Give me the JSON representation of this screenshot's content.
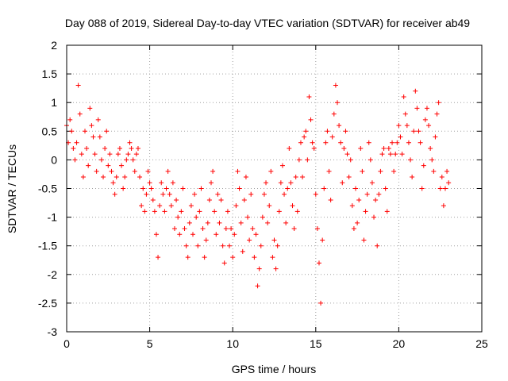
{
  "chart_data": {
    "type": "scatter",
    "title": "Day 088 of 2019, Sidereal Day-to-day VTEC variation (SDTVAR) for receiver ab49",
    "xlabel": "GPS time / hours",
    "ylabel": "SDTVAR / TECUs",
    "xlim": [
      0,
      25
    ],
    "ylim": [
      -3,
      2
    ],
    "xticks": [
      0,
      5,
      10,
      15,
      20,
      25
    ],
    "yticks": [
      -3,
      -2.5,
      -2,
      -1.5,
      -1,
      -0.5,
      0,
      0.5,
      1,
      1.5,
      2
    ],
    "xtick_labels": [
      "0",
      "5",
      "10",
      "15",
      "20",
      "25"
    ],
    "ytick_labels": [
      "-3",
      "-2.5",
      "-2",
      "-1.5",
      "-1",
      "-0.5",
      "0",
      "0.5",
      "1",
      "1.5",
      "2"
    ],
    "grid": true,
    "marker": "+",
    "color": "#ff0000",
    "series": [
      {
        "name": "SDTVAR",
        "x": [
          0.0,
          0.1,
          0.2,
          0.3,
          0.4,
          0.5,
          0.6,
          0.7,
          0.8,
          0.9,
          1.0,
          1.1,
          1.2,
          1.3,
          1.4,
          1.5,
          1.6,
          1.7,
          1.8,
          1.9,
          2.0,
          2.1,
          2.2,
          2.3,
          2.4,
          2.5,
          2.6,
          2.7,
          2.8,
          2.9,
          3.0,
          3.1,
          3.2,
          3.3,
          3.4,
          3.5,
          3.6,
          3.7,
          3.8,
          3.9,
          4.0,
          4.1,
          4.2,
          4.3,
          4.4,
          4.5,
          4.6,
          4.7,
          4.8,
          4.9,
          5.0,
          5.1,
          5.2,
          5.3,
          5.4,
          5.5,
          5.6,
          5.7,
          5.8,
          5.9,
          6.0,
          6.1,
          6.2,
          6.3,
          6.4,
          6.5,
          6.6,
          6.7,
          6.8,
          6.9,
          7.0,
          7.1,
          7.2,
          7.3,
          7.4,
          7.5,
          7.6,
          7.7,
          7.8,
          7.9,
          8.0,
          8.1,
          8.2,
          8.3,
          8.4,
          8.5,
          8.6,
          8.7,
          8.8,
          8.9,
          9.0,
          9.1,
          9.2,
          9.3,
          9.4,
          9.5,
          9.6,
          9.7,
          9.8,
          9.9,
          10.0,
          10.1,
          10.2,
          10.3,
          10.4,
          10.5,
          10.6,
          10.7,
          10.8,
          10.9,
          11.0,
          11.1,
          11.2,
          11.3,
          11.4,
          11.5,
          11.6,
          11.7,
          11.8,
          11.9,
          12.0,
          12.1,
          12.2,
          12.3,
          12.4,
          12.5,
          12.6,
          12.7,
          12.8,
          12.9,
          13.0,
          13.1,
          13.2,
          13.3,
          13.4,
          13.5,
          13.6,
          13.7,
          13.8,
          13.9,
          14.0,
          14.1,
          14.2,
          14.3,
          14.4,
          14.5,
          14.6,
          14.7,
          14.8,
          14.9,
          15.0,
          15.1,
          15.2,
          15.3,
          15.4,
          15.5,
          15.6,
          15.7,
          15.8,
          15.9,
          16.0,
          16.1,
          16.2,
          16.3,
          16.4,
          16.5,
          16.6,
          16.7,
          16.8,
          16.9,
          17.0,
          17.1,
          17.2,
          17.3,
          17.4,
          17.5,
          17.6,
          17.7,
          17.8,
          17.9,
          18.0,
          18.1,
          18.2,
          18.3,
          18.4,
          18.5,
          18.6,
          18.7,
          18.8,
          18.9,
          19.0,
          19.1,
          19.2,
          19.3,
          19.4,
          19.5,
          19.6,
          19.7,
          19.8,
          19.9,
          20.0,
          20.1,
          20.2,
          20.3,
          20.4,
          20.5,
          20.6,
          20.7,
          20.8,
          20.9,
          21.0,
          21.1,
          21.2,
          21.3,
          21.4,
          21.5,
          21.6,
          21.7,
          21.8,
          21.9,
          22.0,
          22.1,
          22.2,
          22.3,
          22.4,
          22.5,
          22.6,
          22.7,
          22.8,
          22.9,
          23.0
        ],
        "y": [
          0.6,
          0.3,
          0.7,
          0.5,
          0.2,
          0.0,
          0.3,
          1.3,
          0.8,
          0.1,
          -0.3,
          0.5,
          0.2,
          -0.1,
          0.9,
          0.6,
          0.4,
          0.1,
          -0.2,
          0.7,
          0.4,
          0.0,
          -0.3,
          0.2,
          0.5,
          -0.1,
          0.1,
          -0.2,
          -0.4,
          -0.6,
          -0.3,
          0.1,
          0.2,
          -0.1,
          -0.5,
          -0.3,
          0.0,
          0.1,
          0.3,
          0.2,
          0.0,
          -0.2,
          0.1,
          0.2,
          -0.3,
          -0.8,
          -0.5,
          -0.9,
          -0.6,
          -0.2,
          -0.4,
          -0.5,
          -0.7,
          -0.9,
          -1.3,
          -1.7,
          -0.8,
          -0.4,
          -0.6,
          -0.9,
          -0.5,
          -0.2,
          -0.6,
          -0.8,
          -0.4,
          -1.2,
          -0.7,
          -1.0,
          -1.3,
          -0.9,
          -0.5,
          -1.2,
          -1.5,
          -1.7,
          -1.1,
          -0.8,
          -1.3,
          -0.6,
          -1.0,
          -1.5,
          -0.9,
          -0.5,
          -1.2,
          -1.7,
          -1.4,
          -1.1,
          -0.7,
          -0.4,
          -0.2,
          -0.9,
          -1.3,
          -0.6,
          -1.1,
          -0.7,
          -1.5,
          -1.8,
          -1.2,
          -0.9,
          -1.5,
          -1.2,
          -1.7,
          -1.3,
          -0.8,
          -0.2,
          -0.5,
          -1.1,
          -1.6,
          -0.7,
          -0.3,
          -1.0,
          -1.4,
          -0.6,
          -1.2,
          -1.7,
          -1.3,
          -2.2,
          -1.9,
          -1.5,
          -1.0,
          -0.6,
          -0.4,
          -1.1,
          -0.8,
          -0.2,
          -1.7,
          -1.4,
          -1.9,
          -1.5,
          -0.9,
          -0.4,
          -0.1,
          -0.6,
          -1.1,
          -0.5,
          0.2,
          -0.4,
          -0.8,
          -1.2,
          -0.3,
          -0.9,
          0.0,
          0.3,
          -0.3,
          0.4,
          0.5,
          0.0,
          1.1,
          0.7,
          0.3,
          0.2,
          -0.6,
          -1.2,
          -1.8,
          -2.5,
          -1.4,
          -0.5,
          0.3,
          0.5,
          -0.2,
          -0.7,
          0.4,
          0.8,
          1.3,
          1.0,
          0.6,
          0.3,
          -0.4,
          0.2,
          0.5,
          0.1,
          -0.3,
          0.0,
          -0.8,
          -1.2,
          -0.5,
          -1.1,
          -0.7,
          0.2,
          -0.2,
          -1.4,
          -0.9,
          -0.6,
          0.3,
          0.0,
          -0.4,
          -1.0,
          -0.7,
          -1.5,
          -0.6,
          -0.2,
          0.1,
          0.2,
          -0.5,
          -0.9,
          0.2,
          0.1,
          0.3,
          -0.2,
          0.1,
          0.3,
          0.6,
          0.4,
          0.1,
          1.1,
          0.8,
          0.6,
          0.3,
          0.0,
          -0.3,
          0.5,
          1.2,
          0.9,
          0.5,
          0.3,
          -0.5,
          -0.1,
          0.7,
          0.9,
          0.6,
          0.2,
          0.0,
          -0.2,
          0.4,
          0.8,
          1.0,
          -0.5,
          -0.3,
          -0.8,
          -0.5,
          -0.2,
          -0.4
        ]
      }
    ]
  }
}
